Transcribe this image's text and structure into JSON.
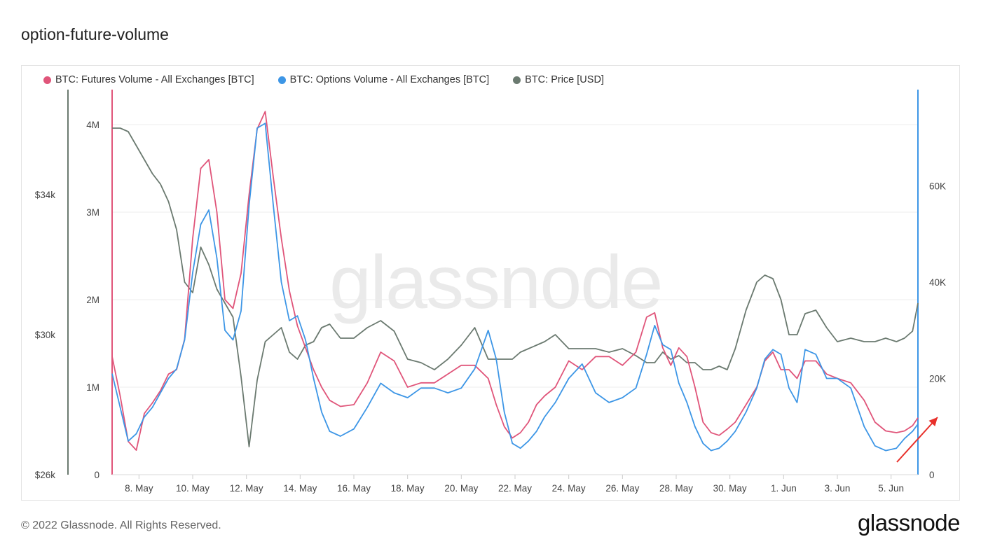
{
  "title": "option-future-volume",
  "watermark": "glassnode",
  "footer": {
    "copyright": "© 2022 Glassnode. All Rights Reserved.",
    "logo": "glassnode"
  },
  "colors": {
    "futures": "#e0557a",
    "options": "#3d96e6",
    "price": "#6b7a70",
    "arrow": "#e8302a",
    "grid": "#ececec"
  },
  "legend": [
    {
      "label": "BTC: Futures Volume - All Exchanges [BTC]",
      "color": "#e0557a"
    },
    {
      "label": "BTC: Options Volume - All Exchanges [BTC]",
      "color": "#3d96e6"
    },
    {
      "label": "BTC: Price [USD]",
      "color": "#6b7a70"
    }
  ],
  "chart_data": {
    "type": "line",
    "x_tick_labels": [
      "8. May",
      "10. May",
      "12. May",
      "14. May",
      "16. May",
      "18. May",
      "20. May",
      "22. May",
      "24. May",
      "26. May",
      "28. May",
      "30. May",
      "1. Jun",
      "3. Jun",
      "5. Jun"
    ],
    "x_range": [
      "2022-05-07",
      "2022-06-06"
    ],
    "axes": {
      "price": {
        "side": "far-left",
        "ticks": [
          "$26k",
          "$30k",
          "$34k"
        ],
        "range": [
          26000,
          37000
        ]
      },
      "futures": {
        "side": "left",
        "ticks": [
          "0",
          "1M",
          "2M",
          "3M",
          "4M"
        ],
        "range": [
          0,
          4400000
        ]
      },
      "options": {
        "side": "right",
        "ticks": [
          "0",
          "20K",
          "40K",
          "60K"
        ],
        "range": [
          0,
          80000
        ]
      }
    },
    "series": [
      {
        "name": "BTC: Futures Volume - All Exchanges [BTC]",
        "axis": "futures",
        "x": [
          7.0,
          7.3,
          7.6,
          7.9,
          8.2,
          8.5,
          8.8,
          9.1,
          9.4,
          9.7,
          10.0,
          10.3,
          10.6,
          10.9,
          11.2,
          11.5,
          11.8,
          12.1,
          12.4,
          12.7,
          13.0,
          13.3,
          13.6,
          13.9,
          14.2,
          14.5,
          14.8,
          15.1,
          15.5,
          16.0,
          16.5,
          17.0,
          17.5,
          18.0,
          18.5,
          19.0,
          19.5,
          20.0,
          20.5,
          21.0,
          21.3,
          21.6,
          21.9,
          22.2,
          22.5,
          22.8,
          23.1,
          23.5,
          24.0,
          24.5,
          25.0,
          25.5,
          26.0,
          26.5,
          26.9,
          27.2,
          27.5,
          27.8,
          28.1,
          28.4,
          28.7,
          29.0,
          29.3,
          29.6,
          29.9,
          30.2,
          30.6,
          31.0,
          31.3,
          31.6,
          31.9,
          32.2,
          32.5,
          32.8,
          33.2,
          33.6,
          34.0,
          34.5,
          35.0,
          35.4,
          35.8,
          36.2,
          36.5,
          36.8,
          37.0
        ],
        "values": [
          1350000,
          900000,
          380000,
          280000,
          700000,
          820000,
          960000,
          1150000,
          1200000,
          1550000,
          2700000,
          3500000,
          3600000,
          3000000,
          2000000,
          1900000,
          2300000,
          3200000,
          3950000,
          4150000,
          3400000,
          2700000,
          2100000,
          1700000,
          1450000,
          1200000,
          1000000,
          850000,
          780000,
          800000,
          1050000,
          1400000,
          1300000,
          1000000,
          1050000,
          1050000,
          1150000,
          1250000,
          1250000,
          1100000,
          800000,
          550000,
          420000,
          480000,
          600000,
          800000,
          900000,
          1000000,
          1300000,
          1200000,
          1350000,
          1350000,
          1250000,
          1400000,
          1800000,
          1850000,
          1450000,
          1250000,
          1450000,
          1350000,
          1000000,
          600000,
          480000,
          450000,
          520000,
          600000,
          800000,
          1000000,
          1300000,
          1400000,
          1200000,
          1200000,
          1100000,
          1300000,
          1300000,
          1150000,
          1100000,
          1050000,
          850000,
          600000,
          500000,
          480000,
          500000,
          560000,
          650000
        ]
      },
      {
        "name": "BTC: Options Volume - All Exchanges [BTC]",
        "axis": "options",
        "x": [
          7.0,
          7.3,
          7.6,
          7.9,
          8.2,
          8.5,
          8.8,
          9.1,
          9.4,
          9.7,
          10.0,
          10.3,
          10.6,
          10.9,
          11.2,
          11.5,
          11.8,
          12.1,
          12.4,
          12.7,
          13.0,
          13.3,
          13.6,
          13.9,
          14.2,
          14.5,
          14.8,
          15.1,
          15.5,
          16.0,
          16.5,
          17.0,
          17.5,
          18.0,
          18.5,
          19.0,
          19.5,
          20.0,
          20.5,
          21.0,
          21.3,
          21.6,
          21.9,
          22.2,
          22.5,
          22.8,
          23.1,
          23.5,
          24.0,
          24.5,
          25.0,
          25.5,
          26.0,
          26.5,
          26.9,
          27.2,
          27.5,
          27.8,
          28.1,
          28.4,
          28.7,
          29.0,
          29.3,
          29.6,
          29.9,
          30.2,
          30.6,
          31.0,
          31.3,
          31.6,
          31.9,
          32.2,
          32.5,
          32.8,
          33.2,
          33.6,
          34.0,
          34.5,
          35.0,
          35.4,
          35.8,
          36.2,
          36.5,
          36.8,
          37.0
        ],
        "values": [
          21000,
          14000,
          7000,
          8500,
          12000,
          14000,
          17000,
          20000,
          22000,
          28000,
          42000,
          52000,
          55000,
          45000,
          30000,
          28000,
          34000,
          56000,
          72000,
          73000,
          56000,
          40000,
          32000,
          33000,
          28000,
          20000,
          13000,
          9000,
          8000,
          9500,
          14000,
          19000,
          17000,
          16000,
          18000,
          18000,
          17000,
          18000,
          22000,
          30000,
          24000,
          13000,
          6500,
          5500,
          7000,
          9000,
          12000,
          15000,
          20000,
          23000,
          17000,
          15000,
          16000,
          18000,
          25000,
          31000,
          27000,
          26000,
          19000,
          15000,
          10000,
          6500,
          5000,
          5500,
          7000,
          9000,
          13000,
          18000,
          24000,
          26000,
          25000,
          18000,
          15000,
          26000,
          25000,
          20000,
          20000,
          18000,
          10000,
          6000,
          5000,
          5500,
          7500,
          9000,
          10500
        ]
      },
      {
        "name": "BTC: Price [USD]",
        "axis": "price",
        "x": [
          7.0,
          7.3,
          7.6,
          7.9,
          8.2,
          8.5,
          8.8,
          9.1,
          9.4,
          9.7,
          10.0,
          10.3,
          10.6,
          10.9,
          11.2,
          11.5,
          11.8,
          12.1,
          12.4,
          12.7,
          13.0,
          13.3,
          13.6,
          13.9,
          14.2,
          14.5,
          14.8,
          15.1,
          15.5,
          16.0,
          16.5,
          17.0,
          17.5,
          18.0,
          18.5,
          19.0,
          19.5,
          20.0,
          20.5,
          21.0,
          21.3,
          21.6,
          21.9,
          22.2,
          22.5,
          22.8,
          23.1,
          23.5,
          24.0,
          24.5,
          25.0,
          25.5,
          26.0,
          26.5,
          26.9,
          27.2,
          27.5,
          27.8,
          28.1,
          28.4,
          28.7,
          29.0,
          29.3,
          29.6,
          29.9,
          30.2,
          30.6,
          31.0,
          31.3,
          31.6,
          31.9,
          32.2,
          32.5,
          32.8,
          33.2,
          33.6,
          34.0,
          34.5,
          35.0,
          35.4,
          35.8,
          36.2,
          36.5,
          36.8,
          37.0
        ],
        "values": [
          35900,
          35900,
          35800,
          35400,
          35000,
          34600,
          34300,
          33800,
          33000,
          31500,
          31200,
          32500,
          32000,
          31300,
          30900,
          30500,
          28800,
          26800,
          28700,
          29800,
          30000,
          30200,
          29500,
          29300,
          29700,
          29800,
          30200,
          30300,
          29900,
          29900,
          30200,
          30400,
          30100,
          29300,
          29200,
          29000,
          29300,
          29700,
          30200,
          29300,
          29300,
          29300,
          29300,
          29500,
          29600,
          29700,
          29800,
          30000,
          29600,
          29600,
          29600,
          29500,
          29600,
          29400,
          29200,
          29200,
          29500,
          29300,
          29400,
          29200,
          29200,
          29000,
          29000,
          29100,
          29000,
          29600,
          30700,
          31500,
          31700,
          31600,
          31000,
          30000,
          30000,
          30600,
          30700,
          30200,
          29800,
          29900,
          29800,
          29800,
          29900,
          29800,
          29900,
          30100,
          30900
        ]
      }
    ],
    "annotations": [
      {
        "type": "arrow",
        "color": "#e8302a",
        "direction": "up-right",
        "near": "end of series"
      }
    ],
    "grid": true,
    "legend_position": "top-left"
  }
}
